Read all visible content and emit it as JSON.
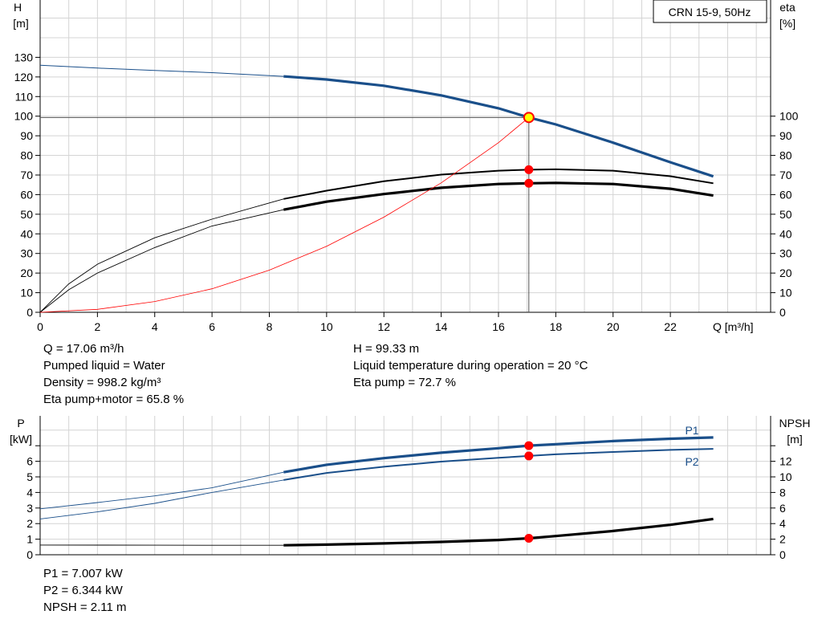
{
  "chart_data": [
    {
      "type": "line",
      "title": "CRN 15-9, 50Hz",
      "xlabel": "Q [m³/h]",
      "xlim": [
        0,
        25.5
      ],
      "x_ticks": [
        "0",
        "2",
        "4",
        "6",
        "8",
        "10",
        "12",
        "14",
        "16",
        "18",
        "20",
        "22"
      ],
      "y_left": {
        "label_line1": "H",
        "label_line2": "[m]",
        "ylim": [
          0,
          140
        ],
        "ticks": [
          "0",
          "10",
          "20",
          "30",
          "40",
          "50",
          "60",
          "70",
          "80",
          "90",
          "100",
          "110",
          "120",
          "130"
        ]
      },
      "y_right": {
        "label_line1": "eta",
        "label_line2": "[%]",
        "ylim": [
          0,
          140
        ],
        "ticks": [
          "0",
          "10",
          "20",
          "30",
          "40",
          "50",
          "60",
          "70",
          "80",
          "90",
          "100"
        ]
      },
      "grid": true,
      "series": [
        {
          "key": "H",
          "axis": "left",
          "color": "#1a4f8a",
          "x": [
            0,
            2,
            4,
            6,
            8.5,
            10,
            12,
            14,
            16,
            17.06,
            18,
            20,
            22,
            23.5
          ],
          "y": [
            126,
            124.5,
            123.3,
            122.2,
            120.3,
            118.7,
            115.5,
            110.6,
            104,
            99.33,
            95.8,
            86.5,
            76.5,
            69.3
          ],
          "dashed_until": 8.5
        },
        {
          "key": "eta-pump",
          "axis": "right",
          "color": "#000000",
          "x": [
            0,
            1,
            2,
            4,
            6,
            8.5,
            10,
            12,
            14,
            16,
            17.06,
            18,
            20,
            22,
            23.5
          ],
          "y": [
            0,
            14.5,
            24.5,
            38,
            47.5,
            57.8,
            62,
            66.8,
            70.2,
            72.2,
            72.7,
            72.9,
            72.2,
            69.4,
            65.8
          ],
          "thin_until": 8.5
        },
        {
          "key": "eta-pump-motor",
          "axis": "right",
          "color": "#000000",
          "x": [
            0,
            1,
            2,
            4,
            6,
            8.5,
            10,
            12,
            14,
            16,
            17.06,
            18,
            20,
            22,
            23.5
          ],
          "y": [
            0,
            11.5,
            20,
            33,
            44,
            52.3,
            56.4,
            60.3,
            63.5,
            65.4,
            65.8,
            66,
            65.4,
            63,
            59.5
          ],
          "thin_until": 8.5
        },
        {
          "key": "system-curve",
          "axis": "left",
          "color": "#ff0000",
          "x": [
            0,
            2,
            4,
            6,
            8,
            10,
            12,
            14,
            16,
            17.06
          ],
          "y": [
            0,
            1.5,
            5.5,
            12,
            21.5,
            33.7,
            48.5,
            66,
            86.5,
            99.33
          ]
        }
      ],
      "operating_point": {
        "x": 17.06,
        "H": 99.33,
        "eta_pump": 72.7,
        "eta_pump_motor": 65.8
      }
    },
    {
      "type": "line",
      "xlim": [
        0,
        25.5
      ],
      "y_left": {
        "label_line1": "P",
        "label_line2": "[kW]",
        "ylim": [
          0,
          8
        ],
        "ticks": [
          "0",
          "1",
          "2",
          "3",
          "4",
          "5",
          "6"
        ]
      },
      "y_right": {
        "label_line1": "NPSH",
        "label_line2": "[m]",
        "ylim": [
          0,
          16
        ],
        "ticks": [
          "0",
          "2",
          "4",
          "6",
          "8",
          "10",
          "12"
        ]
      },
      "grid": true,
      "series": [
        {
          "key": "P1",
          "name": "P1",
          "axis": "left",
          "color": "#1a4f8a",
          "x": [
            0,
            2,
            4,
            6,
            8.5,
            10,
            12,
            14,
            16,
            17.06,
            18,
            20,
            22,
            23.5
          ],
          "y": [
            2.95,
            3.35,
            3.78,
            4.3,
            5.3,
            5.78,
            6.2,
            6.55,
            6.84,
            7.007,
            7.1,
            7.3,
            7.45,
            7.53
          ],
          "thin_until": 8.5
        },
        {
          "key": "P2",
          "name": "P2",
          "axis": "left",
          "color": "#1a4f8a",
          "x": [
            0,
            2,
            4,
            6,
            8.5,
            10,
            12,
            14,
            16,
            17.06,
            18,
            20,
            22,
            23.5
          ],
          "y": [
            2.3,
            2.75,
            3.3,
            4,
            4.8,
            5.25,
            5.65,
            5.98,
            6.22,
            6.344,
            6.45,
            6.6,
            6.73,
            6.8
          ],
          "thin_until": 8.5
        },
        {
          "key": "NPSH",
          "axis": "right",
          "color": "#000000",
          "x": [
            0,
            4,
            8.5,
            10,
            12,
            14,
            16,
            17.06,
            18,
            20,
            22,
            23.5
          ],
          "y": [
            1.25,
            1.23,
            1.22,
            1.3,
            1.45,
            1.65,
            1.9,
            2.11,
            2.4,
            3.05,
            3.85,
            4.6
          ],
          "thin_until": 8.5
        }
      ],
      "operating_point": {
        "x": 17.06,
        "P1": 7.007,
        "P2": 6.344,
        "NPSH": 2.11
      }
    }
  ],
  "info_top_left": [
    "Q = 17.06 m³/h",
    "Pumped liquid = Water",
    "Density = 998.2 kg/m³",
    "Eta pump+motor = 65.8 %"
  ],
  "info_top_right": [
    "H = 99.33 m",
    "Liquid temperature during operation = 20 °C",
    "Eta pump = 72.7 %"
  ],
  "info_bottom": [
    "P1 = 7.007 kW",
    "P2 = 6.344 kW",
    "NPSH = 2.11 m"
  ],
  "colors": {
    "grid": "#d4d4d4",
    "blue": "#1a4f8a",
    "red": "#ff0000",
    "marker_yellow": "#ffff00"
  }
}
